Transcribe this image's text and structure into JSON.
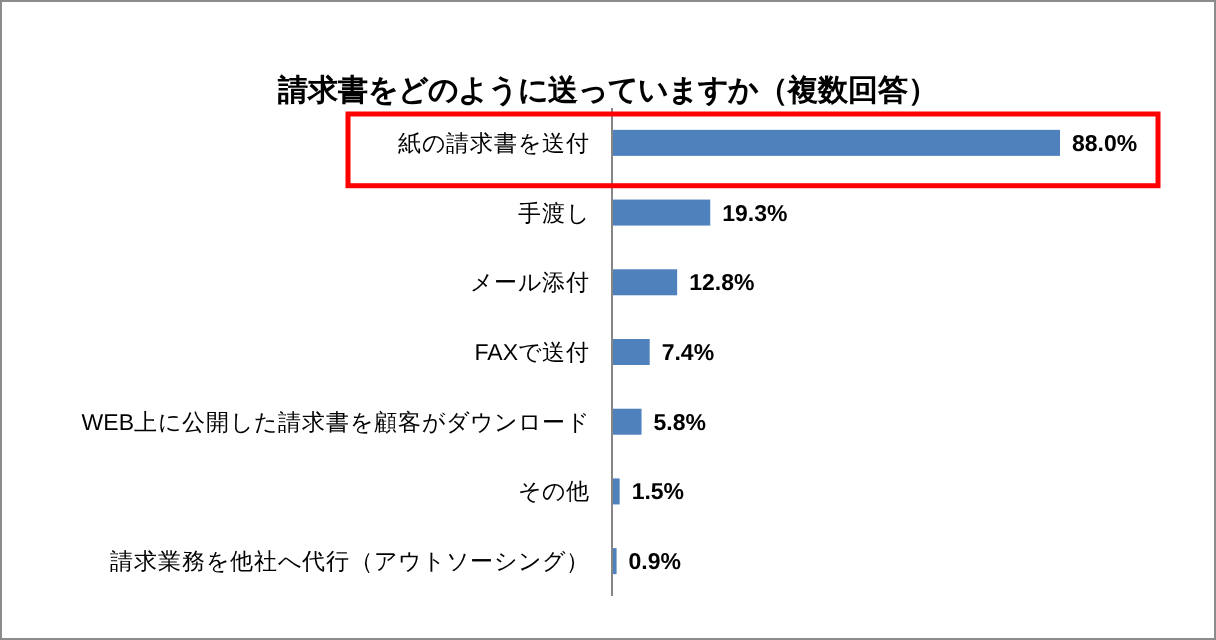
{
  "chart_data": {
    "type": "bar",
    "orientation": "horizontal",
    "title": "請求書をどのように送っていますか（複数回答）",
    "categories": [
      "紙の請求書を送付",
      "手渡し",
      "メール添付",
      "FAXで送付",
      "WEB上に公開した請求書を顧客がダウンロード",
      "その他",
      "請求業務を他社へ代行（アウトソーシング）"
    ],
    "values": [
      88.0,
      19.3,
      12.8,
      7.4,
      5.8,
      1.5,
      0.9
    ],
    "value_labels": [
      "88.0%",
      "19.3%",
      "12.8%",
      "7.4%",
      "5.8%",
      "1.5%",
      "0.9%"
    ],
    "color": "#4f81bd"
  }
}
